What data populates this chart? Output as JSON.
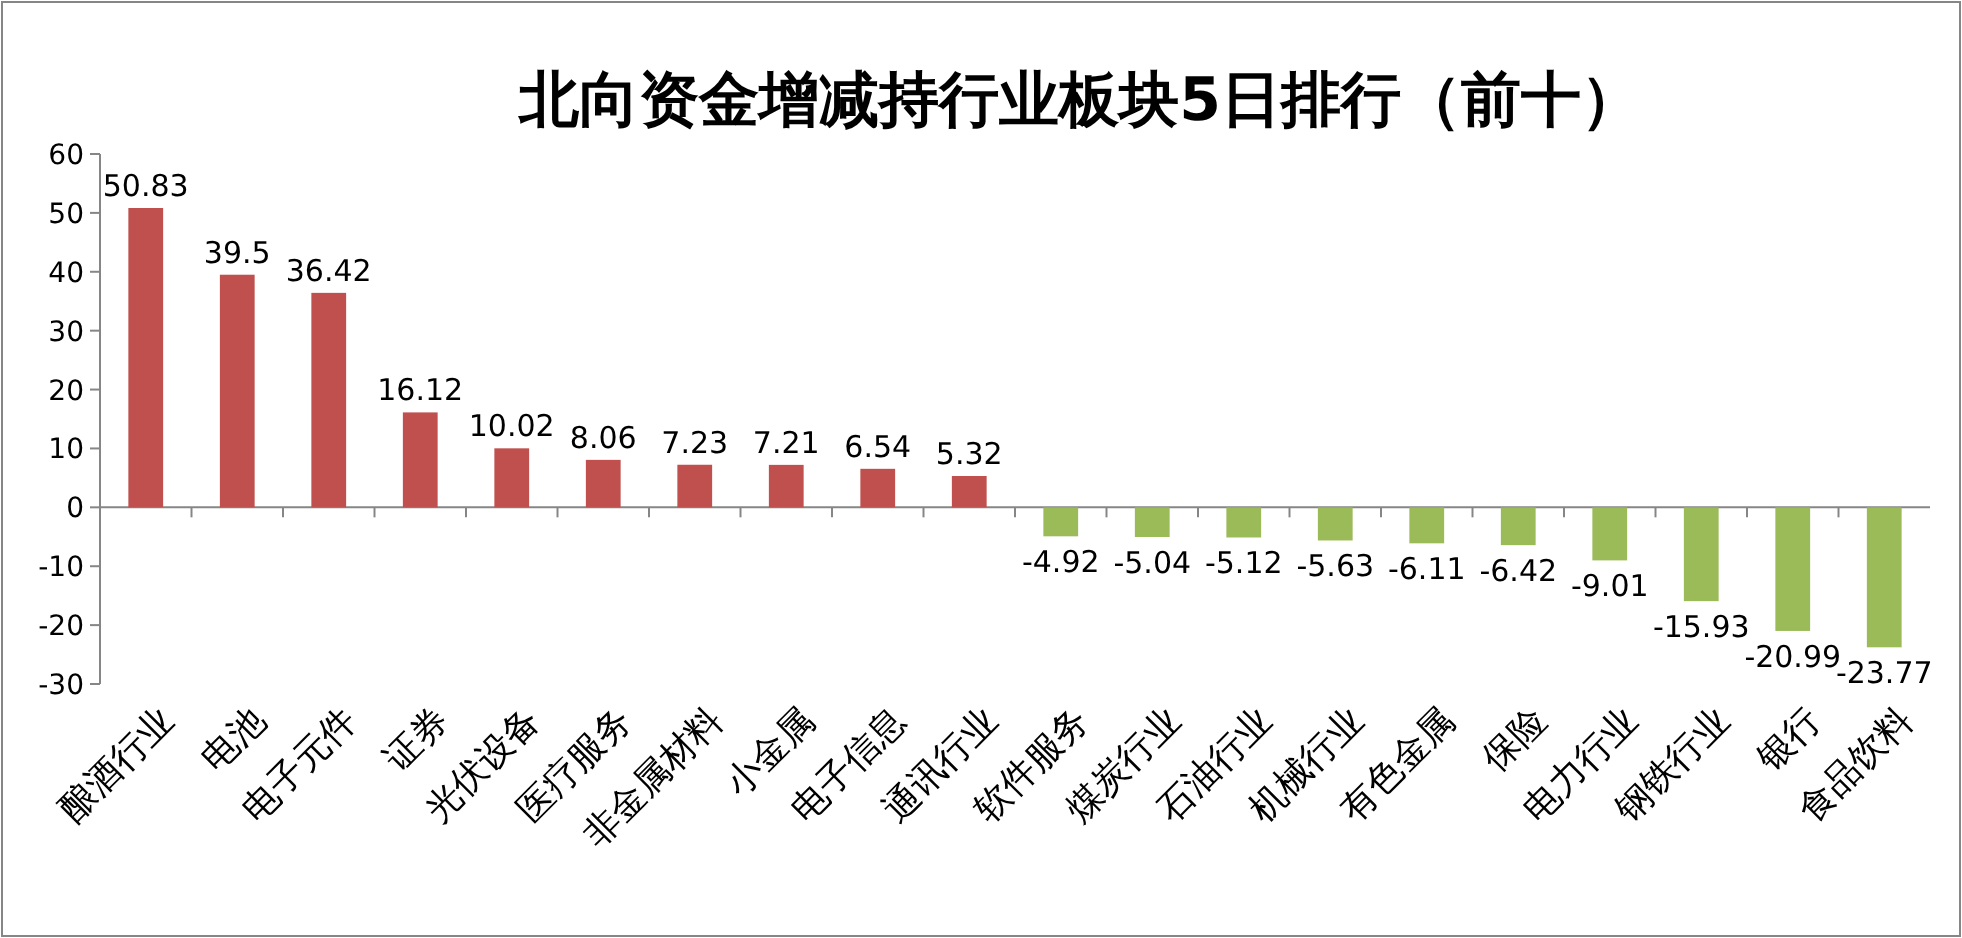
{
  "chart_data": {
    "type": "bar",
    "title": "北向资金增减持行业板块5日排行（前十）",
    "categories": [
      "酿酒行业",
      "电池",
      "电子元件",
      "证券",
      "光伏设备",
      "医疗服务",
      "非金属材料",
      "小金属",
      "电子信息",
      "通讯行业",
      "软件服务",
      "煤炭行业",
      "石油行业",
      "机械行业",
      "有色金属",
      "保险",
      "电力行业",
      "钢铁行业",
      "银行",
      "食品饮料"
    ],
    "values": [
      50.83,
      39.5,
      36.42,
      16.12,
      10.02,
      8.06,
      7.23,
      7.21,
      6.54,
      5.32,
      -4.92,
      -5.04,
      -5.12,
      -5.63,
      -6.11,
      -6.42,
      -9.01,
      -15.93,
      -20.99,
      -23.77
    ],
    "colors": [
      "#c0504d",
      "#c0504d",
      "#c0504d",
      "#c0504d",
      "#c0504d",
      "#c0504d",
      "#c0504d",
      "#c0504d",
      "#c0504d",
      "#c0504d",
      "#9bbb59",
      "#9bbb59",
      "#9bbb59",
      "#9bbb59",
      "#9bbb59",
      "#9bbb59",
      "#9bbb59",
      "#9bbb59",
      "#9bbb59",
      "#9bbb59"
    ],
    "ylim": [
      -30,
      60
    ],
    "yticks": [
      -30,
      -20,
      -10,
      0,
      10,
      20,
      30,
      40,
      50,
      60
    ],
    "data_labels": true
  }
}
